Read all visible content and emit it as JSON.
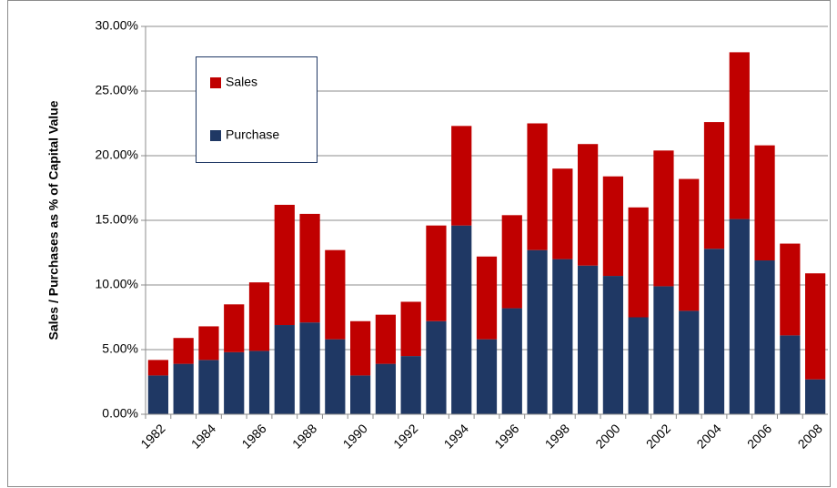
{
  "chart_data": {
    "type": "stacked_bar",
    "ylabel": "Sales / Purchases as % of Capital Value",
    "categories": [
      "1982",
      null,
      "1984",
      null,
      "1986",
      null,
      "1988",
      null,
      "1990",
      null,
      "1992",
      null,
      "1994",
      null,
      "1996",
      null,
      "1998",
      null,
      "2000",
      null,
      "2002",
      null,
      "2004",
      null,
      "2006",
      null,
      "2008"
    ],
    "series": [
      {
        "name": "Purchase",
        "color": "#1f3864",
        "values": [
          3.0,
          3.9,
          4.2,
          4.8,
          4.9,
          6.9,
          7.1,
          5.8,
          3.0,
          3.9,
          4.5,
          7.2,
          14.6,
          5.8,
          8.2,
          12.7,
          12.0,
          11.5,
          10.7,
          7.5,
          9.9,
          8.0,
          12.8,
          15.1,
          11.9,
          6.1,
          2.7
        ]
      },
      {
        "name": "Sales",
        "color": "#c00000",
        "values": [
          1.2,
          2.0,
          2.6,
          3.7,
          5.3,
          9.3,
          8.4,
          6.9,
          4.2,
          3.8,
          4.2,
          7.4,
          7.7,
          6.4,
          7.2,
          9.8,
          7.0,
          9.4,
          7.7,
          8.5,
          10.5,
          10.2,
          9.8,
          12.9,
          8.9,
          7.1,
          8.2
        ]
      }
    ],
    "ylim": [
      0,
      30
    ],
    "yticks": [
      {
        "value": 0,
        "label": "0.00%"
      },
      {
        "value": 5,
        "label": "5.00%"
      },
      {
        "value": 10,
        "label": "10.00%"
      },
      {
        "value": 15,
        "label": "15.00%"
      },
      {
        "value": 20,
        "label": "20.00%"
      },
      {
        "value": 25,
        "label": "25.00%"
      },
      {
        "value": 30,
        "label": "30.00%"
      }
    ],
    "grid": true
  }
}
